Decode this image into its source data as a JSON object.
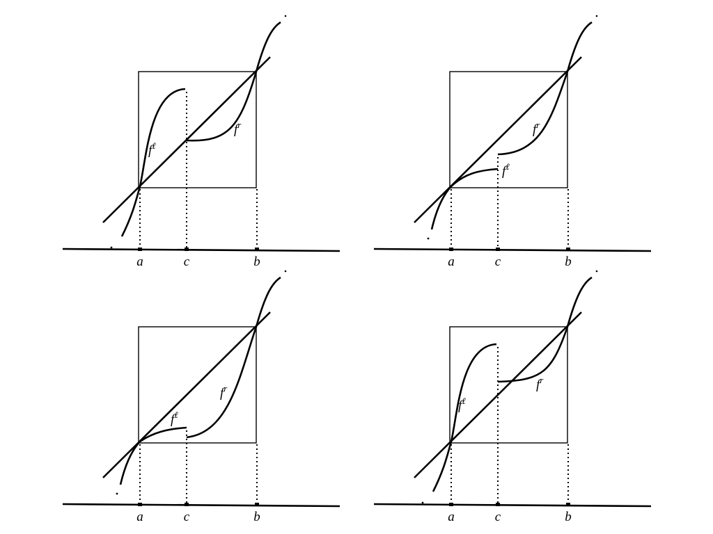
{
  "panels": [
    {
      "ticks": [
        "a",
        "c",
        "b"
      ],
      "curve_labels": [
        {
          "base": "f",
          "sup": "ℓ"
        },
        {
          "base": "f",
          "sup": "r"
        }
      ]
    },
    {
      "ticks": [
        "a",
        "c",
        "b"
      ],
      "curve_labels": [
        {
          "base": "f",
          "sup": "ℓ"
        },
        {
          "base": "f",
          "sup": "r"
        }
      ]
    },
    {
      "ticks": [
        "a",
        "c",
        "b"
      ],
      "curve_labels": [
        {
          "base": "f",
          "sup": "ℓ"
        },
        {
          "base": "f",
          "sup": "r"
        }
      ]
    },
    {
      "ticks": [
        "a",
        "c",
        "b"
      ],
      "curve_labels": [
        {
          "base": "f",
          "sup": "ℓ"
        },
        {
          "base": "f",
          "sup": "r"
        }
      ]
    }
  ]
}
